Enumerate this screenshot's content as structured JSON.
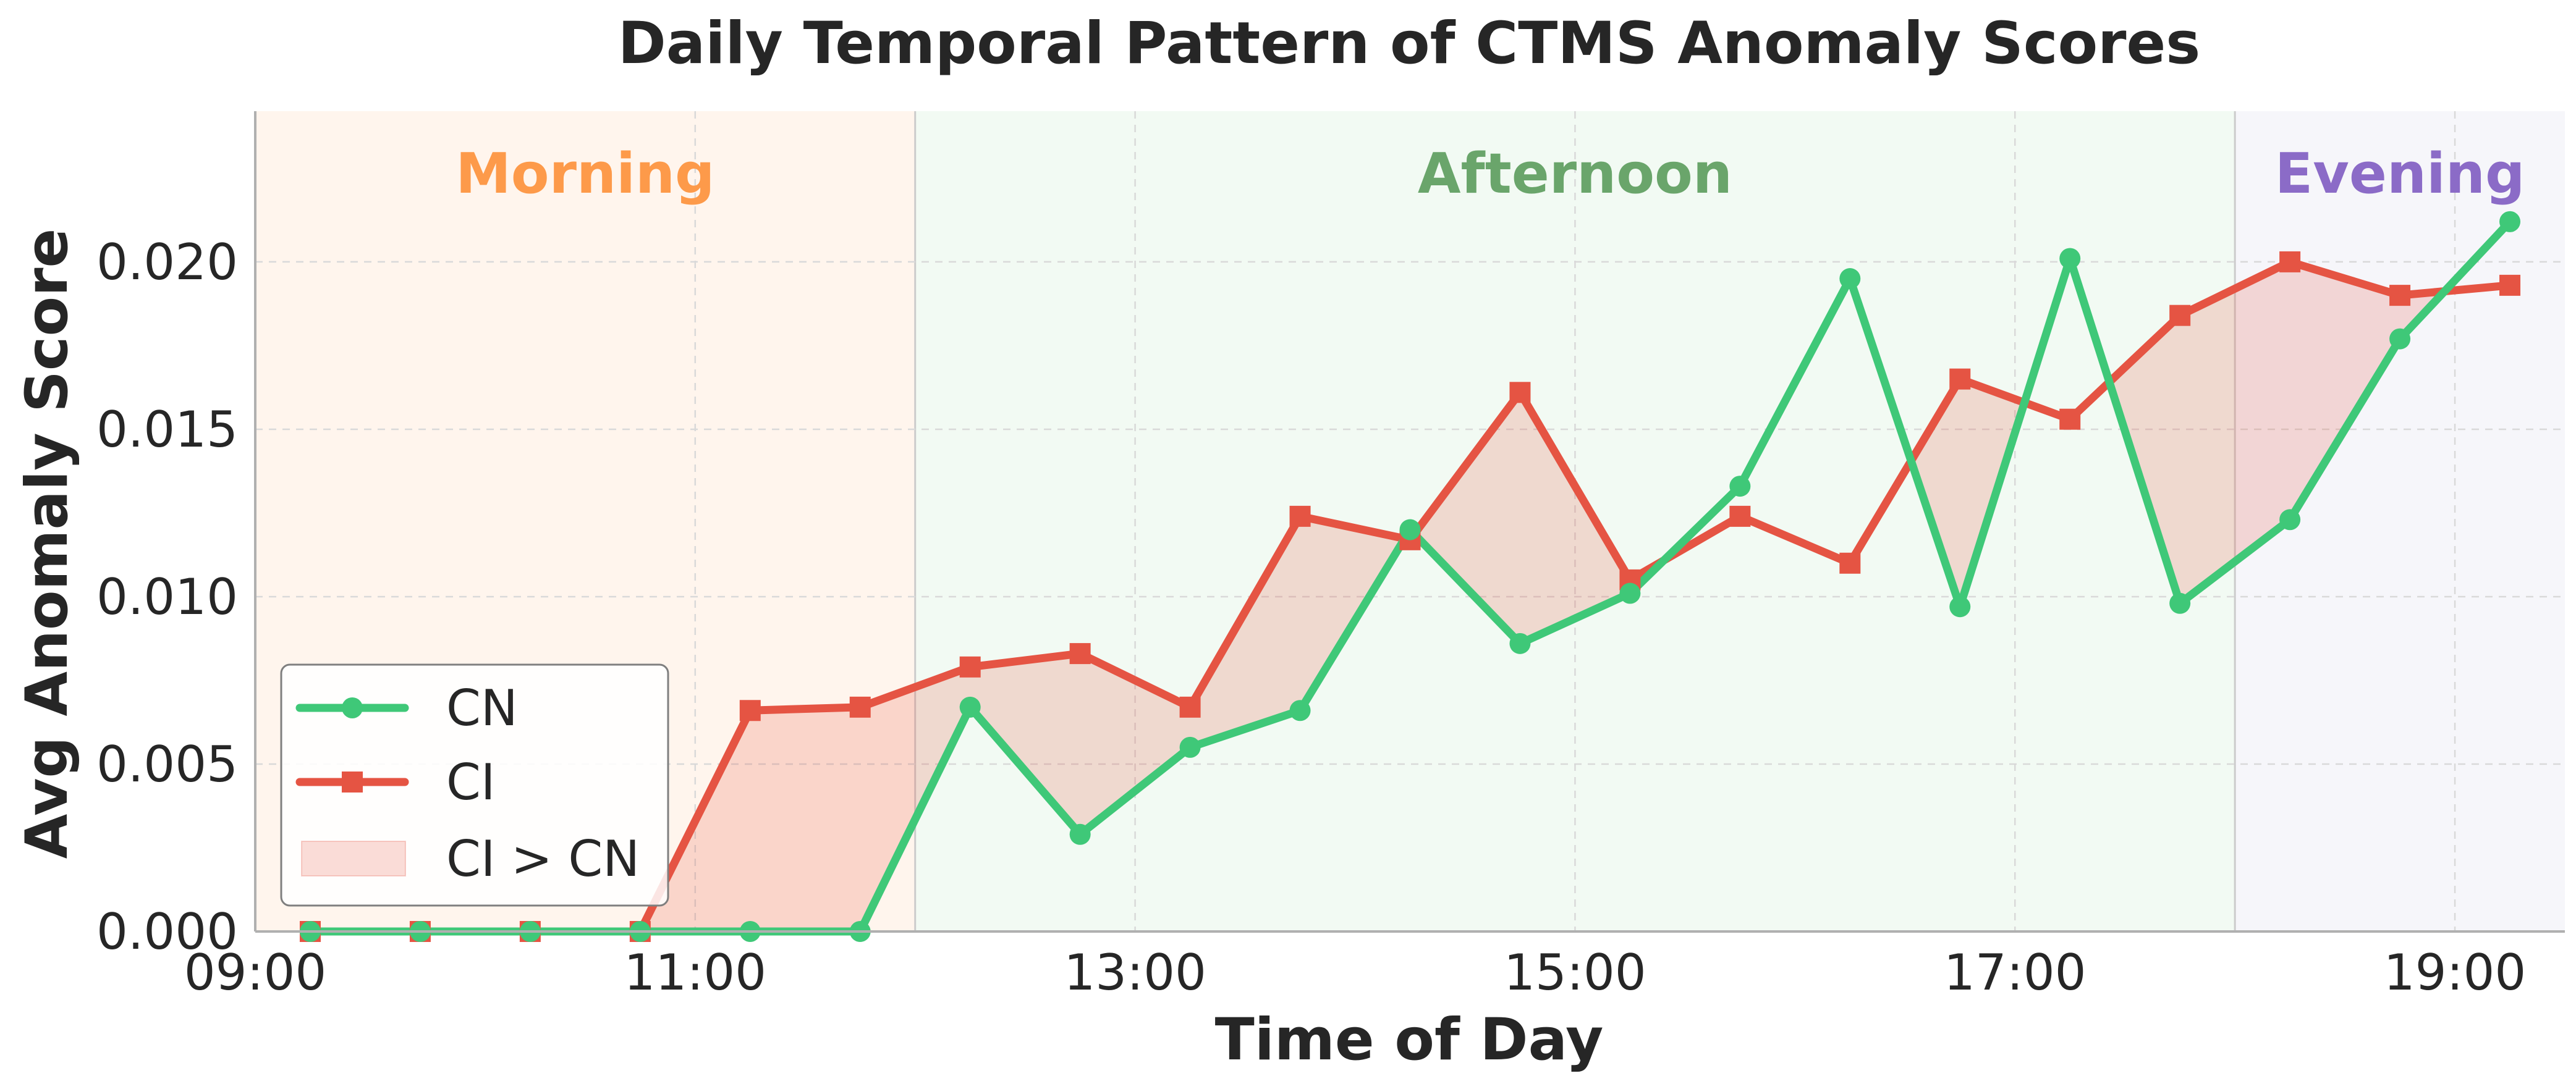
{
  "chart_data": {
    "type": "line",
    "title": "Daily Temporal Pattern of CTMS Anomaly Scores",
    "xlabel": "Time of Day",
    "ylabel": "Avg Anomaly Score",
    "x": [
      "09:15",
      "09:45",
      "10:15",
      "10:45",
      "11:15",
      "11:45",
      "12:15",
      "12:45",
      "13:15",
      "13:45",
      "14:15",
      "14:45",
      "15:15",
      "15:45",
      "16:15",
      "16:45",
      "17:15",
      "17:45",
      "18:15",
      "18:45",
      "19:15"
    ],
    "x_ticks": [
      "09:00",
      "11:00",
      "13:00",
      "15:00",
      "17:00",
      "19:00"
    ],
    "xlim": [
      "09:00",
      "19:30"
    ],
    "y_ticks": [
      "0.000",
      "0.005",
      "0.010",
      "0.015",
      "0.020"
    ],
    "ylim": [
      0,
      0.0245
    ],
    "grid": true,
    "legend_position": "lower-left",
    "series": [
      {
        "name": "CN",
        "color": "#3fc878",
        "marker": "circle",
        "values": [
          0.0,
          0.0,
          0.0,
          0.0,
          0.0,
          0.0,
          0.0067,
          0.0029,
          0.0055,
          0.0066,
          0.012,
          0.0086,
          0.0101,
          0.0133,
          0.0195,
          0.0097,
          0.0201,
          0.0098,
          0.0123,
          0.0177,
          0.0212
        ]
      },
      {
        "name": "CI",
        "color": "#e55443",
        "marker": "square",
        "values": [
          0.0,
          0.0,
          0.0,
          0.0,
          0.0066,
          0.0067,
          0.0079,
          0.0083,
          0.0067,
          0.0124,
          0.0117,
          0.0161,
          0.0105,
          0.0124,
          0.011,
          0.0165,
          0.0153,
          0.0184,
          0.02,
          0.019,
          0.0193
        ]
      }
    ],
    "fill_between": {
      "name": "CI > CN",
      "color": "#e55443"
    },
    "periods": [
      {
        "name": "Morning",
        "start": "09:00",
        "end": "12:00",
        "color": "#fd8d3c",
        "label_color": "#fd9a4a"
      },
      {
        "name": "Afternoon",
        "start": "12:00",
        "end": "18:00",
        "color": "#74c476",
        "label_color": "#6aa56b"
      },
      {
        "name": "Evening",
        "start": "18:00",
        "end": "19:30",
        "color": "#9e9ac8",
        "label_color": "#8b6bc7"
      }
    ]
  }
}
